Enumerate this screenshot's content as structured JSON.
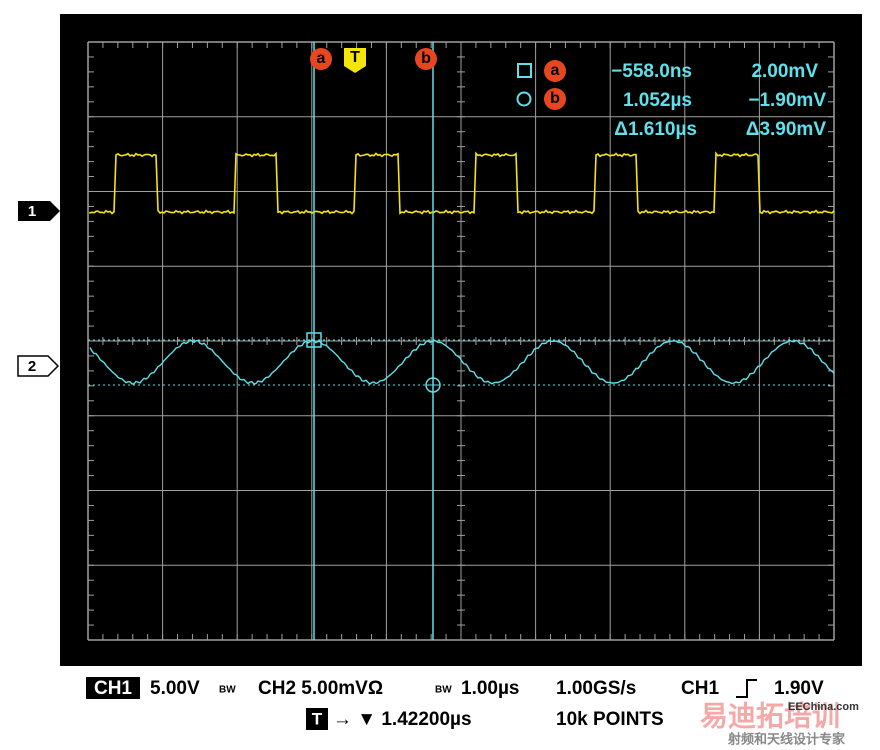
{
  "screen": {
    "cursor_marks": {
      "a": "a",
      "trigger": "T",
      "b": "b"
    },
    "channel_marks": {
      "ch1": "1",
      "ch2": "2"
    },
    "readout": {
      "a": {
        "time": "−558.0ns",
        "voltage": "2.00mV"
      },
      "b": {
        "time": "1.052µs",
        "voltage": "−1.90mV"
      },
      "delta": {
        "time": "Δ1.610µs",
        "voltage": "Δ3.90mV"
      }
    }
  },
  "status_bar": {
    "row1": {
      "ch1_label": "CH1",
      "ch1_scale": "5.00V",
      "ch1_bw": "BW",
      "ch2_scale": "CH2 5.00mVΩ",
      "ch2_bw": "BW",
      "timebase": "1.00µs",
      "sample_rate": "1.00GS/s",
      "trigger_source": "CH1",
      "trigger_level": "1.90V"
    },
    "row2": {
      "trigger_label": "T",
      "trigger_position": "→ ▼ 1.42200µs",
      "record_length": "10k POINTS"
    }
  },
  "watermark": {
    "site": "EEChina.com",
    "brand": "易迪拓培训",
    "tagline": "射频和天线设计专家"
  }
}
